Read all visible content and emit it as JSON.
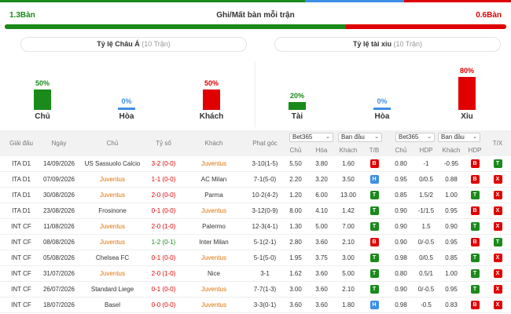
{
  "colors": {
    "green": "#1a8a1a",
    "red": "#e00000",
    "blue": "#3d8fe6",
    "orange": "#e27100"
  },
  "goals": {
    "home_value": "1.3Bàn",
    "title": "Ghi/Mất bàn mỗi trận",
    "away_value": "0.6Bàn",
    "home_share": 0.68
  },
  "asian": {
    "title": "Tỷ lệ Châu Á",
    "count": "(10 Trận)",
    "bars": [
      {
        "pct": "50%",
        "label": "Chủ",
        "value": 50,
        "color": "#1a8a1a"
      },
      {
        "pct": "0%",
        "label": "Hòa",
        "value": 0,
        "color": "#3d8fe6"
      },
      {
        "pct": "50%",
        "label": "Khách",
        "value": 50,
        "color": "#e00000"
      }
    ]
  },
  "overunder": {
    "title": "Tỷ lệ tài xỉu",
    "count": "(10 Trận)",
    "bars": [
      {
        "pct": "20%",
        "label": "Tài",
        "value": 20,
        "color": "#1a8a1a"
      },
      {
        "pct": "0%",
        "label": "Hòa",
        "value": 0,
        "color": "#3d8fe6"
      },
      {
        "pct": "80%",
        "label": "Xỉu",
        "value": 80,
        "color": "#e00000"
      }
    ]
  },
  "table": {
    "headers": {
      "league": "Giải đấu",
      "date": "Ngày",
      "home": "Chủ",
      "score": "Tỷ số",
      "away": "Khách",
      "corner": "Phạt góc",
      "odds1": "Chủ",
      "draw": "Hòa",
      "odds2": "Khách",
      "tb": "T/B",
      "ou_home": "Chủ",
      "hdp": "HDP",
      "ou_away": "Khách",
      "hdp2": "HDP",
      "tx": "T/X"
    },
    "select_book1": "Bet365",
    "select_type1": "Ban đầu",
    "select_book2": "Bet365",
    "select_type2": "Ban đầu",
    "rows": [
      {
        "league": "ITA D1",
        "date": "14/09/2026",
        "home": "US Sassuolo Calcio",
        "home_juve": false,
        "score": "3-2 (0-0)",
        "score_color": "red",
        "away": "Juventus",
        "away_juve": true,
        "corner": "3-10(1-5)",
        "o1": "5.50",
        "od": "3.80",
        "o2": "1.60",
        "tb": "B",
        "tb_color": "red",
        "h1": "0.80",
        "hdp": "-1",
        "h2": "-0.95",
        "r": "B",
        "r_color": "red",
        "tx": "T",
        "tx_color": "green"
      },
      {
        "league": "ITA D1",
        "date": "07/09/2026",
        "home": "Juventus",
        "home_juve": true,
        "score": "1-1 (0-0)",
        "score_color": "red",
        "away": "AC Milan",
        "away_juve": false,
        "corner": "7-1(5-0)",
        "o1": "2.20",
        "od": "3.20",
        "o2": "3.50",
        "tb": "H",
        "tb_color": "blue",
        "h1": "0.95",
        "hdp": "0/0.5",
        "h2": "0.88",
        "r": "B",
        "r_color": "red",
        "tx": "X",
        "tx_color": "red"
      },
      {
        "league": "ITA D1",
        "date": "30/08/2026",
        "home": "Juventus",
        "home_juve": true,
        "score": "2-0 (0-0)",
        "score_color": "red",
        "away": "Parma",
        "away_juve": false,
        "corner": "10-2(4-2)",
        "o1": "1.20",
        "od": "6.00",
        "o2": "13.00",
        "tb": "T",
        "tb_color": "green",
        "h1": "0.85",
        "hdp": "1.5/2",
        "h2": "1.00",
        "r": "T",
        "r_color": "green",
        "tx": "X",
        "tx_color": "red"
      },
      {
        "league": "ITA D1",
        "date": "23/08/2026",
        "home": "Frosinone",
        "home_juve": false,
        "score": "0-1 (0-0)",
        "score_color": "red",
        "away": "Juventus",
        "away_juve": true,
        "corner": "3-12(0-9)",
        "o1": "8.00",
        "od": "4.10",
        "o2": "1.42",
        "tb": "T",
        "tb_color": "green",
        "h1": "0.90",
        "hdp": "-1/1.5",
        "h2": "0.95",
        "r": "B",
        "r_color": "red",
        "tx": "X",
        "tx_color": "red"
      },
      {
        "league": "INT CF",
        "date": "11/08/2026",
        "home": "Juventus",
        "home_juve": true,
        "score": "2-0 (1-0)",
        "score_color": "red",
        "away": "Palermo",
        "away_juve": false,
        "corner": "12-3(4-1)",
        "o1": "1.30",
        "od": "5.00",
        "o2": "7.00",
        "tb": "T",
        "tb_color": "green",
        "h1": "0.90",
        "hdp": "1.5",
        "h2": "0.90",
        "r": "T",
        "r_color": "green",
        "tx": "X",
        "tx_color": "red"
      },
      {
        "league": "INT CF",
        "date": "08/08/2026",
        "home": "Juventus",
        "home_juve": true,
        "score": "1-2 (0-1)",
        "score_color": "green",
        "away": "Inter Milan",
        "away_juve": false,
        "corner": "5-1(2-1)",
        "o1": "2.80",
        "od": "3.60",
        "o2": "2.10",
        "tb": "B",
        "tb_color": "red",
        "h1": "0.90",
        "hdp": "0/-0.5",
        "h2": "0.95",
        "r": "B",
        "r_color": "red",
        "tx": "T",
        "tx_color": "green"
      },
      {
        "league": "INT CF",
        "date": "05/08/2026",
        "home": "Chelsea FC",
        "home_juve": false,
        "score": "0-1 (0-0)",
        "score_color": "red",
        "away": "Juventus",
        "away_juve": true,
        "corner": "5-1(5-0)",
        "o1": "1.95",
        "od": "3.75",
        "o2": "3.00",
        "tb": "T",
        "tb_color": "green",
        "h1": "0.98",
        "hdp": "0/0.5",
        "h2": "0.85",
        "r": "T",
        "r_color": "green",
        "tx": "X",
        "tx_color": "red"
      },
      {
        "league": "INT CF",
        "date": "31/07/2026",
        "home": "Juventus",
        "home_juve": true,
        "score": "2-0 (1-0)",
        "score_color": "red",
        "away": "Nice",
        "away_juve": false,
        "corner": "3-1",
        "o1": "1.62",
        "od": "3.60",
        "o2": "5.00",
        "tb": "T",
        "tb_color": "green",
        "h1": "0.80",
        "hdp": "0.5/1",
        "h2": "1.00",
        "r": "T",
        "r_color": "green",
        "tx": "X",
        "tx_color": "red"
      },
      {
        "league": "INT CF",
        "date": "26/07/2026",
        "home": "Standard Liege",
        "home_juve": false,
        "score": "0-1 (0-0)",
        "score_color": "red",
        "away": "Juventus",
        "away_juve": true,
        "corner": "7-7(1-3)",
        "o1": "3.00",
        "od": "3.60",
        "o2": "2.10",
        "tb": "T",
        "tb_color": "green",
        "h1": "0.90",
        "hdp": "0/-0.5",
        "h2": "0.95",
        "r": "T",
        "r_color": "green",
        "tx": "X",
        "tx_color": "red"
      },
      {
        "league": "INT CF",
        "date": "18/07/2026",
        "home": "Basel",
        "home_juve": false,
        "score": "0-0 (0-0)",
        "score_color": "red",
        "away": "Juventus",
        "away_juve": true,
        "corner": "3-3(0-1)",
        "o1": "3.60",
        "od": "3.60",
        "o2": "1.80",
        "tb": "H",
        "tb_color": "blue",
        "h1": "0.98",
        "hdp": "-0.5",
        "h2": "0.83",
        "r": "B",
        "r_color": "red",
        "tx": "X",
        "tx_color": "red"
      }
    ]
  }
}
